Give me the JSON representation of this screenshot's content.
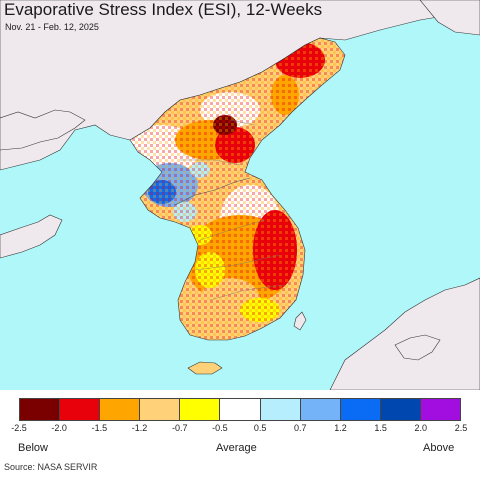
{
  "title": "Evaporative Stress Index (ESI), 12-Weeks",
  "subtitle": "Nov. 21 - Feb. 12, 2025",
  "legend": {
    "colors": [
      "#7a0000",
      "#e8000a",
      "#ffa500",
      "#ffd27a",
      "#ffff00",
      "#ffffff",
      "#b7eefe",
      "#74b3f7",
      "#0a6cf4",
      "#0047b0",
      "#a30ee0"
    ],
    "ticks": [
      "-2.5",
      "-2.0",
      "-1.5",
      "-1.2",
      "-0.7",
      "-0.5",
      "0.5",
      "0.7",
      "1.2",
      "1.5",
      "2.0",
      "2.5"
    ],
    "below_label": "Below",
    "average_label": "Average",
    "above_label": "Above"
  },
  "source": "Source: NASA SERVIR",
  "colors": {
    "water": "#aff7f9",
    "land_no_data": "#efe9ee"
  }
}
